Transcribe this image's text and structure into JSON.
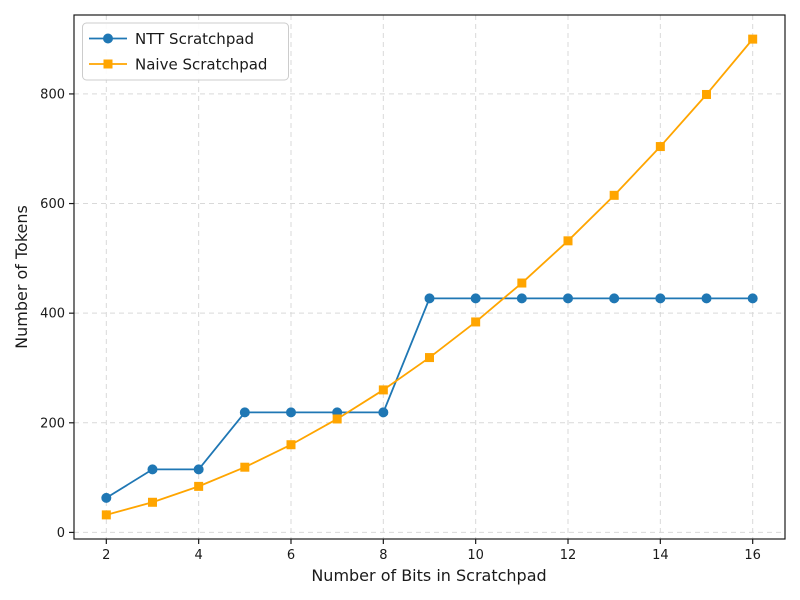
{
  "chart_data": {
    "type": "line",
    "x": [
      2,
      3,
      4,
      5,
      6,
      7,
      8,
      9,
      10,
      11,
      12,
      13,
      14,
      15,
      16
    ],
    "series": [
      {
        "name": "NTT Scratchpad",
        "color": "#1f77b4",
        "marker": "circle",
        "values": [
          63,
          115,
          115,
          219,
          219,
          219,
          219,
          427,
          427,
          427,
          427,
          427,
          427,
          427,
          427
        ]
      },
      {
        "name": "Naive Scratchpad",
        "color": "#ffa500",
        "marker": "square",
        "values": [
          32,
          55,
          84,
          119,
          160,
          207,
          260,
          319,
          384,
          455,
          532,
          615,
          704,
          799,
          900
        ]
      }
    ],
    "title": "",
    "xlabel": "Number of Bits in Scratchpad",
    "ylabel": "Number of Tokens",
    "xticks": [
      2,
      4,
      6,
      8,
      10,
      12,
      14,
      16
    ],
    "yticks": [
      0,
      200,
      400,
      600,
      800
    ],
    "xlim": [
      1.3,
      16.7
    ],
    "ylim": [
      -12,
      944
    ],
    "grid": true,
    "grid_color": "#d9d9d9",
    "spine_color": "#1a1a1a",
    "background": "#ffffff",
    "legend_position": "upper left",
    "legend_border_color": "#cccccc"
  }
}
